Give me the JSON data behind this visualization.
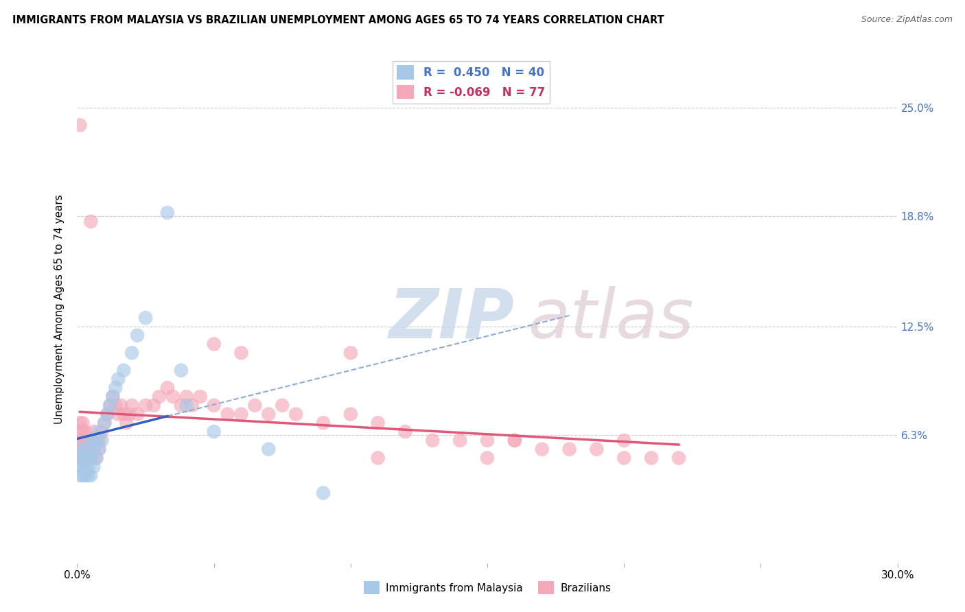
{
  "title": "IMMIGRANTS FROM MALAYSIA VS BRAZILIAN UNEMPLOYMENT AMONG AGES 65 TO 74 YEARS CORRELATION CHART",
  "source": "Source: ZipAtlas.com",
  "ylabel": "Unemployment Among Ages 65 to 74 years",
  "xlim": [
    0.0,
    0.3
  ],
  "ylim": [
    -0.01,
    0.28
  ],
  "xticks": [
    0.0,
    0.05,
    0.1,
    0.15,
    0.2,
    0.25,
    0.3
  ],
  "xticklabels": [
    "0.0%",
    "",
    "",
    "",
    "",
    "",
    "30.0%"
  ],
  "ytick_positions": [
    0.063,
    0.125,
    0.188,
    0.25
  ],
  "ytick_labels_right": [
    "6.3%",
    "12.5%",
    "18.8%",
    "25.0%"
  ],
  "R_blue": 0.45,
  "N_blue": 40,
  "R_pink": -0.069,
  "N_pink": 77,
  "blue_color": "#a8c8e8",
  "pink_color": "#f4a8b8",
  "blue_line_color": "#3060c0",
  "pink_line_color": "#e05878",
  "dashed_line_color": "#90acd0",
  "blue_scatter_x": [
    0.001,
    0.001,
    0.001,
    0.002,
    0.002,
    0.002,
    0.002,
    0.003,
    0.003,
    0.003,
    0.003,
    0.004,
    0.004,
    0.004,
    0.005,
    0.005,
    0.005,
    0.006,
    0.006,
    0.007,
    0.007,
    0.008,
    0.008,
    0.009,
    0.01,
    0.011,
    0.012,
    0.013,
    0.014,
    0.015,
    0.017,
    0.02,
    0.022,
    0.025,
    0.033,
    0.038,
    0.04,
    0.05,
    0.07,
    0.09
  ],
  "blue_scatter_y": [
    0.04,
    0.045,
    0.05,
    0.04,
    0.045,
    0.05,
    0.055,
    0.04,
    0.045,
    0.05,
    0.055,
    0.04,
    0.045,
    0.05,
    0.04,
    0.05,
    0.06,
    0.045,
    0.055,
    0.05,
    0.06,
    0.055,
    0.065,
    0.06,
    0.07,
    0.075,
    0.08,
    0.085,
    0.09,
    0.095,
    0.1,
    0.11,
    0.12,
    0.13,
    0.19,
    0.1,
    0.08,
    0.065,
    0.055,
    0.03
  ],
  "pink_scatter_x": [
    0.001,
    0.001,
    0.001,
    0.001,
    0.001,
    0.001,
    0.002,
    0.002,
    0.002,
    0.002,
    0.002,
    0.003,
    0.003,
    0.003,
    0.003,
    0.004,
    0.004,
    0.004,
    0.005,
    0.005,
    0.005,
    0.006,
    0.006,
    0.007,
    0.007,
    0.008,
    0.008,
    0.009,
    0.01,
    0.011,
    0.012,
    0.013,
    0.014,
    0.015,
    0.016,
    0.017,
    0.018,
    0.019,
    0.02,
    0.022,
    0.025,
    0.028,
    0.03,
    0.033,
    0.035,
    0.038,
    0.04,
    0.042,
    0.045,
    0.05,
    0.055,
    0.06,
    0.065,
    0.07,
    0.075,
    0.08,
    0.09,
    0.1,
    0.11,
    0.12,
    0.13,
    0.14,
    0.15,
    0.16,
    0.17,
    0.18,
    0.19,
    0.2,
    0.21,
    0.22,
    0.05,
    0.1,
    0.15,
    0.2,
    0.06,
    0.11,
    0.16
  ],
  "pink_scatter_y": [
    0.05,
    0.055,
    0.06,
    0.065,
    0.07,
    0.24,
    0.05,
    0.055,
    0.06,
    0.065,
    0.07,
    0.05,
    0.055,
    0.06,
    0.065,
    0.05,
    0.055,
    0.06,
    0.05,
    0.055,
    0.185,
    0.055,
    0.065,
    0.05,
    0.06,
    0.055,
    0.06,
    0.065,
    0.07,
    0.075,
    0.08,
    0.085,
    0.08,
    0.075,
    0.08,
    0.075,
    0.07,
    0.075,
    0.08,
    0.075,
    0.08,
    0.08,
    0.085,
    0.09,
    0.085,
    0.08,
    0.085,
    0.08,
    0.085,
    0.08,
    0.075,
    0.075,
    0.08,
    0.075,
    0.08,
    0.075,
    0.07,
    0.075,
    0.07,
    0.065,
    0.06,
    0.06,
    0.06,
    0.06,
    0.055,
    0.055,
    0.055,
    0.05,
    0.05,
    0.05,
    0.115,
    0.11,
    0.05,
    0.06,
    0.11,
    0.05,
    0.06
  ]
}
